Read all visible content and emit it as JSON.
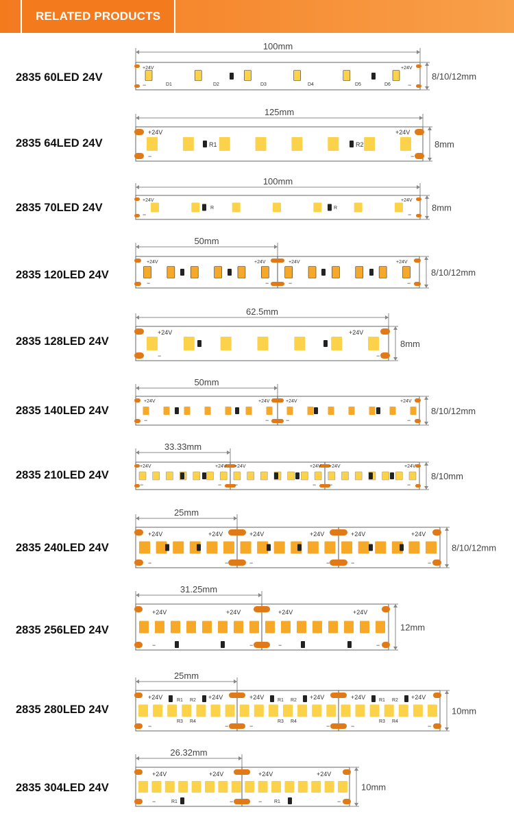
{
  "header": {
    "title": "RELATED PRODUCTS"
  },
  "products": [
    {
      "name": "2835 60LED 24V",
      "length": "100mm",
      "width": "8/10/12mm"
    },
    {
      "name": "2835 64LED 24V",
      "length": "125mm",
      "width": "8mm"
    },
    {
      "name": "2835 70LED 24V",
      "length": "100mm",
      "width": "8mm"
    },
    {
      "name": "2835 120LED 24V",
      "length": "50mm",
      "width": "8/10/12mm"
    },
    {
      "name": "2835 128LED 24V",
      "length": "62.5mm",
      "width": "8mm"
    },
    {
      "name": "2835 140LED 24V",
      "length": "50mm",
      "width": "8/10/12mm"
    },
    {
      "name": "2835 210LED 24V",
      "length": "33.33mm",
      "width": "8/10mm"
    },
    {
      "name": "2835 240LED 24V",
      "length": "25mm",
      "width": "8/10/12mm"
    },
    {
      "name": "2835 256LED 24V",
      "length": "31.25mm",
      "width": "12mm"
    },
    {
      "name": "2835 280LED 24V",
      "length": "25mm",
      "width": "10mm"
    },
    {
      "name": "2835 304LED 24V",
      "length": "26.32mm",
      "width": "10mm"
    }
  ],
  "strip_text": {
    "plus": "+24V",
    "minus": "−",
    "d_labels": [
      "D1",
      "D2",
      "D3",
      "D4",
      "D5",
      "D6"
    ],
    "r": "R",
    "r1": "R1",
    "r2": "R2",
    "r3": "R3",
    "r4": "R4"
  },
  "colors": {
    "accent": "#f47a1e",
    "copper": "#e07a18",
    "led_yellow": "#fbd24a",
    "led_orange": "#f6a828",
    "resistor": "#222222",
    "line": "#888888"
  }
}
